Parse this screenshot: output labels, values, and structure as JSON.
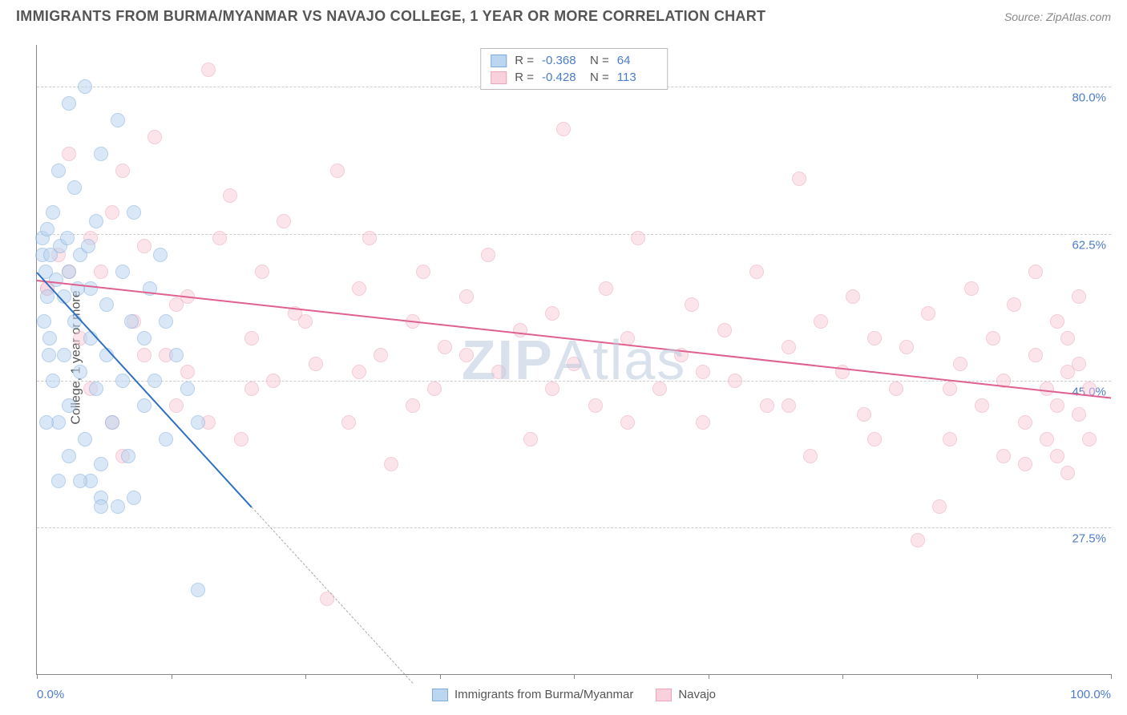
{
  "header": {
    "title": "IMMIGRANTS FROM BURMA/MYANMAR VS NAVAJO COLLEGE, 1 YEAR OR MORE CORRELATION CHART",
    "source": "Source: ZipAtlas.com"
  },
  "chart": {
    "type": "scatter",
    "ylabel": "College, 1 year or more",
    "watermark_a": "ZIP",
    "watermark_b": "Atlas",
    "xlim": [
      0,
      100
    ],
    "ylim": [
      10,
      85
    ],
    "x_min_label": "0.0%",
    "x_max_label": "100.0%",
    "x_ticks": [
      0,
      12.5,
      25,
      37.5,
      50,
      62.5,
      75,
      87.5,
      100
    ],
    "y_gridlines": [
      {
        "v": 27.5,
        "label": "27.5%"
      },
      {
        "v": 45.0,
        "label": "45.0%"
      },
      {
        "v": 62.5,
        "label": "62.5%"
      },
      {
        "v": 80.0,
        "label": "80.0%"
      }
    ],
    "series": {
      "a": {
        "name": "Immigrants from Burma/Myanmar",
        "color_fill": "#bcd5f0",
        "color_stroke": "#7fabdc",
        "line_color": "#2e6fc0",
        "r_label": "R =",
        "r_value": "-0.368",
        "n_label": "N =",
        "n_value": "64",
        "trend_start": [
          0,
          58
        ],
        "trend_solid_end": [
          20,
          30
        ],
        "trend_dash_end": [
          35,
          9
        ],
        "points": [
          [
            0.5,
            60
          ],
          [
            0.5,
            62
          ],
          [
            0.8,
            58
          ],
          [
            1,
            55
          ],
          [
            1,
            63
          ],
          [
            1.2,
            50
          ],
          [
            1.5,
            65
          ],
          [
            1.5,
            45
          ],
          [
            2,
            70
          ],
          [
            2,
            40
          ],
          [
            2.2,
            61
          ],
          [
            2.5,
            55
          ],
          [
            2.5,
            48
          ],
          [
            3,
            78
          ],
          [
            3,
            42
          ],
          [
            3,
            58
          ],
          [
            3.5,
            52
          ],
          [
            3.5,
            68
          ],
          [
            4,
            46
          ],
          [
            4,
            60
          ],
          [
            4.5,
            80
          ],
          [
            4.5,
            38
          ],
          [
            5,
            56
          ],
          [
            5,
            50
          ],
          [
            5.5,
            64
          ],
          [
            5.5,
            44
          ],
          [
            6,
            72
          ],
          [
            6,
            35
          ],
          [
            6,
            31
          ],
          [
            6.5,
            54
          ],
          [
            6.5,
            48
          ],
          [
            7,
            40
          ],
          [
            7.5,
            76
          ],
          [
            7.5,
            30
          ],
          [
            8,
            58
          ],
          [
            8,
            45
          ],
          [
            8.5,
            36
          ],
          [
            8.8,
            52
          ],
          [
            9,
            65
          ],
          [
            9,
            31
          ],
          [
            10,
            50
          ],
          [
            10,
            42
          ],
          [
            10.5,
            56
          ],
          [
            11,
            45
          ],
          [
            11.5,
            60
          ],
          [
            12,
            38
          ],
          [
            12,
            52
          ],
          [
            13,
            48
          ],
          [
            14,
            44
          ],
          [
            15,
            20
          ],
          [
            15,
            40
          ],
          [
            5,
            33
          ],
          [
            6,
            30
          ],
          [
            2,
            33
          ],
          [
            4,
            33
          ],
          [
            3,
            36
          ],
          [
            1.8,
            57
          ],
          [
            2.8,
            62
          ],
          [
            3.8,
            56
          ],
          [
            4.8,
            61
          ],
          [
            1.3,
            60
          ],
          [
            0.9,
            40
          ],
          [
            1.1,
            48
          ],
          [
            0.7,
            52
          ]
        ]
      },
      "b": {
        "name": "Navajo",
        "color_fill": "#f8d1dc",
        "color_stroke": "#eba4ba",
        "line_color": "#e06090",
        "r_label": "R =",
        "r_value": "-0.428",
        "n_label": "N =",
        "n_value": "113",
        "trend_start": [
          0,
          57
        ],
        "trend_end": [
          100,
          43
        ],
        "points": [
          [
            1,
            56
          ],
          [
            2,
            60
          ],
          [
            3,
            72
          ],
          [
            4,
            50
          ],
          [
            5,
            44
          ],
          [
            6,
            58
          ],
          [
            7,
            65
          ],
          [
            8,
            36
          ],
          [
            9,
            52
          ],
          [
            10,
            61
          ],
          [
            11,
            74
          ],
          [
            12,
            48
          ],
          [
            13,
            42
          ],
          [
            14,
            55
          ],
          [
            16,
            82
          ],
          [
            17,
            62
          ],
          [
            18,
            67
          ],
          [
            19,
            38
          ],
          [
            20,
            50
          ],
          [
            21,
            58
          ],
          [
            22,
            45
          ],
          [
            23,
            64
          ],
          [
            24,
            53
          ],
          [
            26,
            47
          ],
          [
            27,
            19
          ],
          [
            28,
            70
          ],
          [
            29,
            40
          ],
          [
            30,
            56
          ],
          [
            31,
            62
          ],
          [
            32,
            48
          ],
          [
            33,
            35
          ],
          [
            35,
            52
          ],
          [
            36,
            58
          ],
          [
            37,
            44
          ],
          [
            38,
            49
          ],
          [
            40,
            55
          ],
          [
            42,
            60
          ],
          [
            43,
            46
          ],
          [
            45,
            51
          ],
          [
            46,
            38
          ],
          [
            48,
            53
          ],
          [
            49,
            75
          ],
          [
            50,
            47
          ],
          [
            52,
            42
          ],
          [
            53,
            56
          ],
          [
            55,
            50
          ],
          [
            56,
            62
          ],
          [
            58,
            44
          ],
          [
            60,
            48
          ],
          [
            61,
            54
          ],
          [
            62,
            40
          ],
          [
            64,
            51
          ],
          [
            65,
            45
          ],
          [
            67,
            58
          ],
          [
            68,
            42
          ],
          [
            70,
            49
          ],
          [
            71,
            69
          ],
          [
            72,
            36
          ],
          [
            73,
            52
          ],
          [
            75,
            46
          ],
          [
            76,
            55
          ],
          [
            77,
            41
          ],
          [
            78,
            50
          ],
          [
            80,
            44
          ],
          [
            81,
            49
          ],
          [
            82,
            26
          ],
          [
            83,
            53
          ],
          [
            84,
            30
          ],
          [
            85,
            38
          ],
          [
            86,
            47
          ],
          [
            87,
            56
          ],
          [
            88,
            42
          ],
          [
            89,
            50
          ],
          [
            90,
            45
          ],
          [
            91,
            54
          ],
          [
            92,
            40
          ],
          [
            92,
            35
          ],
          [
            93,
            48
          ],
          [
            93,
            58
          ],
          [
            94,
            44
          ],
          [
            94,
            38
          ],
          [
            95,
            52
          ],
          [
            95,
            42
          ],
          [
            95,
            36
          ],
          [
            96,
            46
          ],
          [
            96,
            50
          ],
          [
            96,
            34
          ],
          [
            97,
            41
          ],
          [
            97,
            47
          ],
          [
            97,
            55
          ],
          [
            98,
            38
          ],
          [
            98,
            44
          ],
          [
            3,
            58
          ],
          [
            5,
            62
          ],
          [
            7,
            40
          ],
          [
            10,
            48
          ],
          [
            13,
            54
          ],
          [
            16,
            40
          ],
          [
            20,
            44
          ],
          [
            25,
            52
          ],
          [
            30,
            46
          ],
          [
            35,
            42
          ],
          [
            40,
            48
          ],
          [
            48,
            44
          ],
          [
            55,
            40
          ],
          [
            62,
            46
          ],
          [
            70,
            42
          ],
          [
            78,
            38
          ],
          [
            85,
            44
          ],
          [
            90,
            36
          ],
          [
            8,
            70
          ],
          [
            14,
            46
          ],
          [
            1,
            56
          ]
        ]
      }
    }
  }
}
